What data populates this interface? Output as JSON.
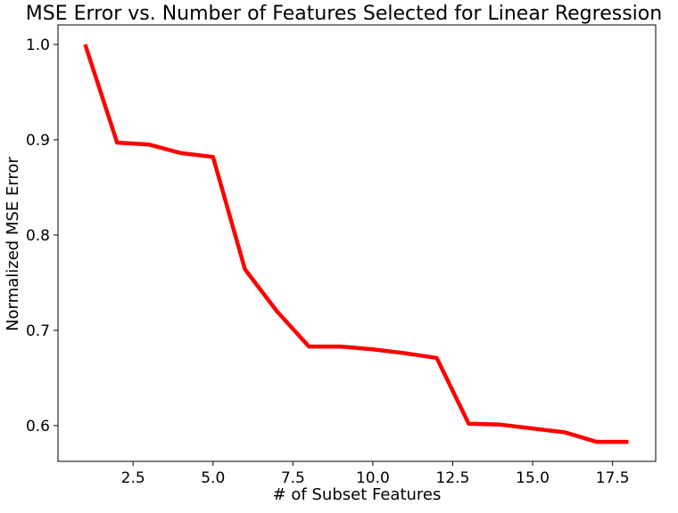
{
  "chart_data": {
    "type": "line",
    "title": "MSE Error vs. Number of Features Selected for Linear Regression",
    "xlabel": "# of Subset Features",
    "ylabel": "Normalized MSE Error",
    "xlim": [
      0.15,
      18.85
    ],
    "ylim": [
      0.5625,
      1.0205
    ],
    "xticks": [
      2.5,
      5.0,
      7.5,
      10.0,
      12.5,
      15.0,
      17.5
    ],
    "xtick_labels": [
      "2.5",
      "5.0",
      "7.5",
      "10.0",
      "12.5",
      "15.0",
      "17.5"
    ],
    "yticks": [
      0.6,
      0.7,
      0.8,
      0.9,
      1.0
    ],
    "ytick_labels": [
      "0.6",
      "0.7",
      "0.8",
      "0.9",
      "1.0"
    ],
    "grid": false,
    "series": [
      {
        "color": "#ff0000",
        "x": [
          1,
          2,
          3,
          4,
          5,
          6,
          7,
          8,
          9,
          10,
          11,
          12,
          13,
          14,
          15,
          16,
          17,
          18
        ],
        "y": [
          1.0,
          0.897,
          0.895,
          0.886,
          0.882,
          0.764,
          0.72,
          0.683,
          0.683,
          0.68,
          0.676,
          0.671,
          0.602,
          0.601,
          0.597,
          0.593,
          0.583,
          0.583
        ]
      }
    ]
  }
}
